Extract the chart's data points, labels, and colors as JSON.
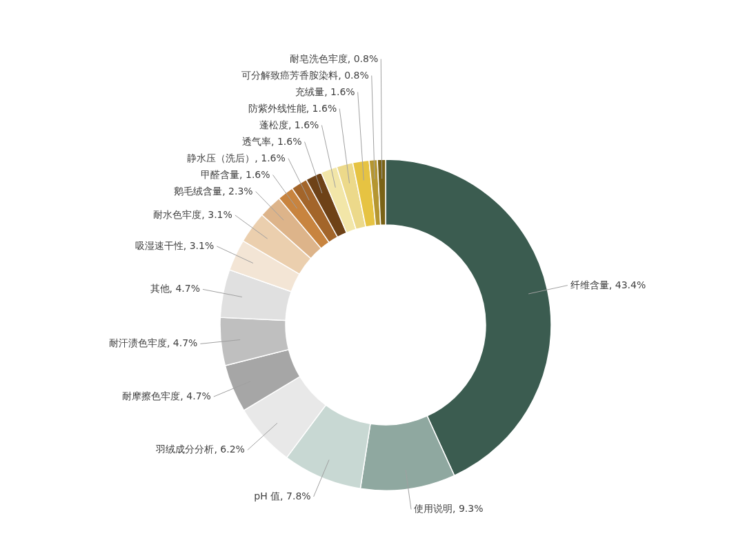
{
  "chart_data": {
    "type": "donut",
    "categories": [
      "纤维含量",
      "使用说明",
      "pH 值",
      "羽绒成分分析",
      "耐摩擦色牢度",
      "耐汗渍色牢度",
      "其他",
      "吸湿速干性",
      "耐水色牢度",
      "鹅毛绒含量",
      "甲醛含量",
      "静水压（洗后）",
      "透气率",
      "蓬松度",
      "防紫外线性能",
      "充绒量",
      "可分解致癌芳香胺染料",
      "耐皂洗色牢度"
    ],
    "values": [
      43.4,
      9.3,
      7.8,
      6.2,
      4.7,
      4.7,
      4.7,
      3.1,
      3.1,
      2.3,
      1.6,
      1.6,
      1.6,
      1.6,
      1.6,
      1.6,
      0.8,
      0.8
    ],
    "value_labels": [
      "43.4%",
      "9.3%",
      "7.8%",
      "6.2%",
      "4.7%",
      "4.7%",
      "4.7%",
      "3.1%",
      "3.1%",
      "2.3%",
      "1.6%",
      "1.6%",
      "1.6%",
      "1.6%",
      "1.6%",
      "1.6%",
      "0.8%",
      "0.8%"
    ],
    "colors": [
      "#3b5c50",
      "#8fa8a0",
      "#c8d8d3",
      "#e8e8e8",
      "#a6a6a6",
      "#bfbfbf",
      "#e0e0e0",
      "#f3e5d5",
      "#ebcfae",
      "#ddb48a",
      "#c8843f",
      "#a3652a",
      "#6e4217",
      "#f2e6a8",
      "#ecd98a",
      "#e6c342",
      "#b59630",
      "#7a6216"
    ]
  }
}
